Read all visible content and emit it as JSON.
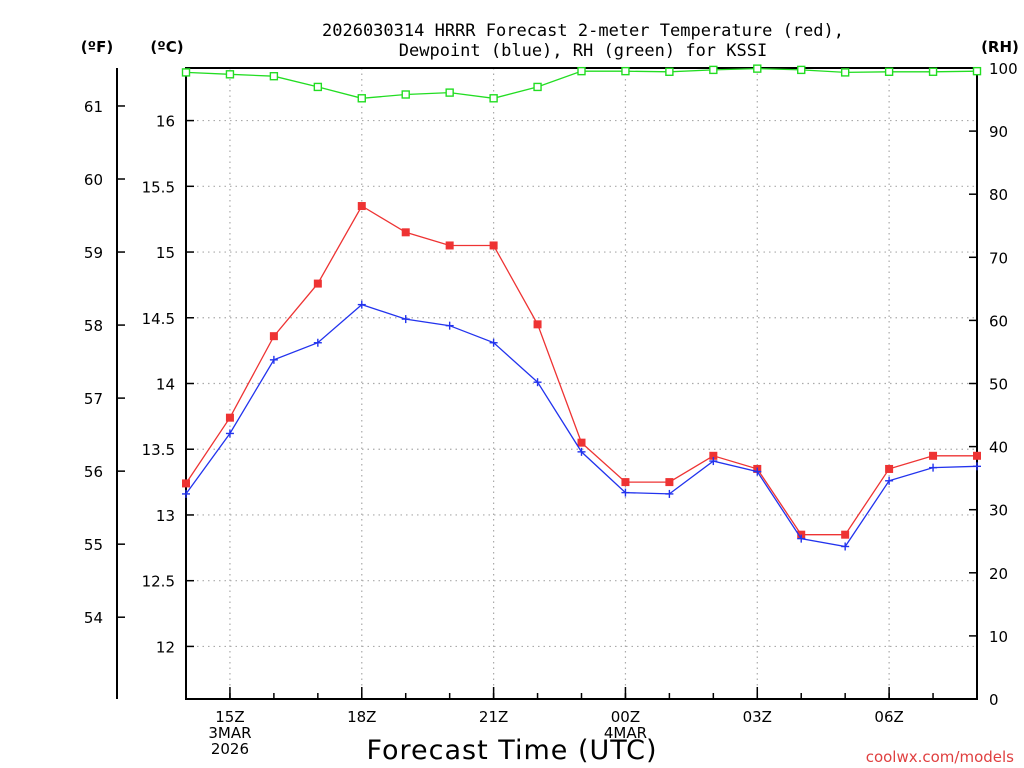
{
  "chart_data": {
    "type": "line",
    "title_line1": "2026030314 HRRR Forecast 2-meter Temperature (red),",
    "title_line2": "Dewpoint (blue), RH (green) for KSSI",
    "xlabel": "Forecast Time (UTC)",
    "credit": "coolwx.com/models",
    "unit_f_label": "(ºF)",
    "unit_c_label": "(ºC)",
    "unit_rh_label": "(RH)",
    "x_hours": [
      14,
      15,
      16,
      17,
      18,
      19,
      20,
      21,
      22,
      23,
      24,
      25,
      26,
      27,
      28,
      29,
      30,
      31,
      32
    ],
    "x_ticks": [
      {
        "hour": 15,
        "lines": [
          "15Z",
          "3MAR",
          "2026"
        ]
      },
      {
        "hour": 18,
        "lines": [
          "18Z"
        ]
      },
      {
        "hour": 21,
        "lines": [
          "21Z"
        ]
      },
      {
        "hour": 24,
        "lines": [
          "00Z",
          "4MAR"
        ]
      },
      {
        "hour": 27,
        "lines": [
          "03Z"
        ]
      },
      {
        "hour": 30,
        "lines": [
          "06Z"
        ]
      }
    ],
    "celsius_axis": {
      "min": 11.6,
      "max": 16.4,
      "ticks": [
        12,
        12.5,
        13,
        13.5,
        14,
        14.5,
        15,
        15.5,
        16
      ]
    },
    "fahrenheit_ticks": [
      54,
      55,
      56,
      57,
      58,
      59,
      60,
      61
    ],
    "rh_axis": {
      "min": 0,
      "max": 100,
      "ticks": [
        0,
        10,
        20,
        30,
        40,
        50,
        60,
        70,
        80,
        90,
        100
      ]
    },
    "series": [
      {
        "name": "Temperature",
        "axis": "celsius",
        "color": "#ee3333",
        "values": [
          13.24,
          13.74,
          14.36,
          14.76,
          15.35,
          15.15,
          15.05,
          15.05,
          14.45,
          13.55,
          13.25,
          13.25,
          13.45,
          13.35,
          12.85,
          12.85,
          13.35,
          13.45,
          13.45
        ]
      },
      {
        "name": "Dewpoint",
        "axis": "celsius",
        "color": "#2233ee",
        "values": [
          13.16,
          13.62,
          14.18,
          14.31,
          14.6,
          14.49,
          14.44,
          14.31,
          14.01,
          13.48,
          13.17,
          13.16,
          13.41,
          13.33,
          12.82,
          12.76,
          13.26,
          13.36,
          13.37
        ]
      },
      {
        "name": "RH",
        "axis": "rh",
        "color": "#22dd22",
        "values": [
          99.3,
          99.0,
          98.7,
          97.0,
          95.2,
          95.8,
          96.1,
          95.2,
          97.0,
          99.5,
          99.5,
          99.4,
          99.7,
          99.9,
          99.7,
          99.3,
          99.4,
          99.4,
          99.5
        ]
      }
    ]
  }
}
